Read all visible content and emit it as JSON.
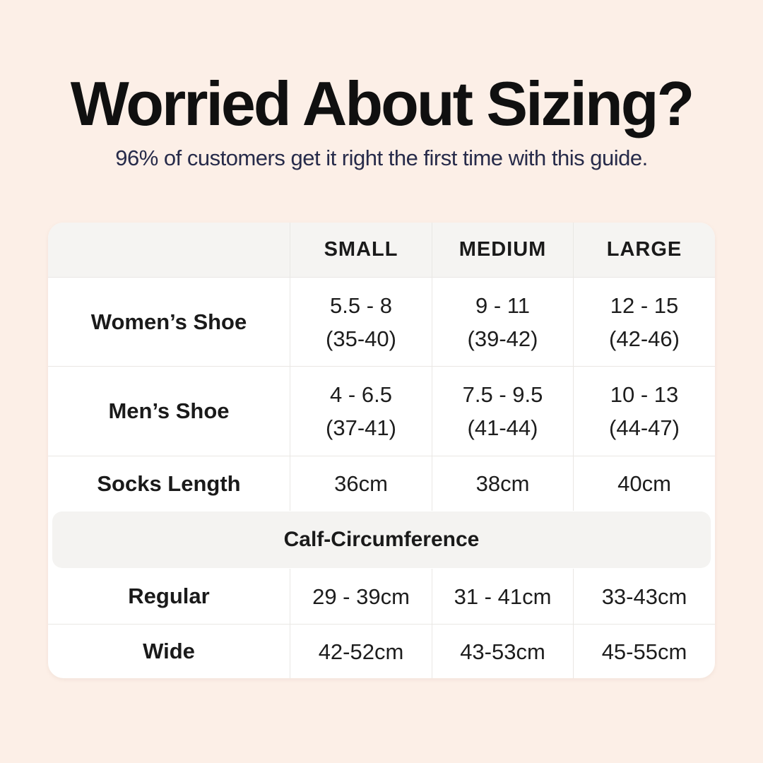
{
  "page": {
    "title": "Worried About Sizing?",
    "subtitle": "96% of customers get it right the first time with this guide."
  },
  "table": {
    "columns": [
      "SMALL",
      "MEDIUM",
      "LARGE"
    ],
    "rows": [
      {
        "label": "Women’s Shoe",
        "cells": [
          [
            "5.5 - 8",
            "(35-40)"
          ],
          [
            "9 - 11",
            "(39-42)"
          ],
          [
            "12 - 15",
            "(42-46)"
          ]
        ]
      },
      {
        "label": "Men’s Shoe",
        "cells": [
          [
            "4 - 6.5",
            "(37-41)"
          ],
          [
            "7.5 - 9.5",
            "(41-44)"
          ],
          [
            "10 - 13",
            "(44-47)"
          ]
        ]
      },
      {
        "label": "Socks Length",
        "cells": [
          "36cm",
          "38cm",
          "40cm"
        ]
      }
    ],
    "section_label": "Calf-Circumference",
    "section_rows": [
      {
        "label": "Regular",
        "cells": [
          "29 - 39cm",
          "31 - 41cm",
          "33-43cm"
        ]
      },
      {
        "label": "Wide",
        "cells": [
          "42-52cm",
          "43-53cm",
          "45-55cm"
        ]
      }
    ]
  },
  "colors": {
    "background": "#fcefe7",
    "card": "#ffffff",
    "header_bg": "#f5f4f2",
    "band_bg": "#f4f3f1",
    "divider": "#e9e7e4",
    "title_text": "#101010",
    "subtitle_text": "#272b4a",
    "table_text": "#1a1a1a"
  }
}
